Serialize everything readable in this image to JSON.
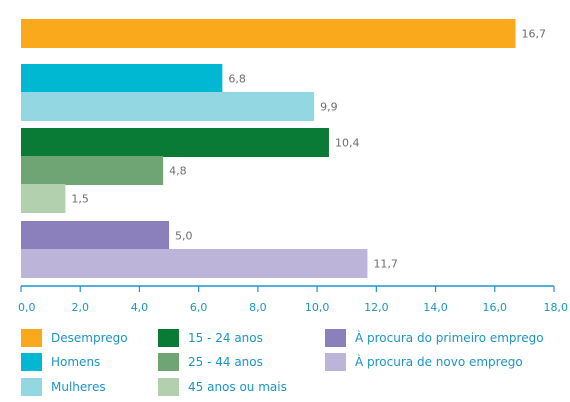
{
  "chart_data": {
    "type": "bar",
    "orientation": "horizontal",
    "xlim": [
      0,
      18
    ],
    "xticks": [
      "0,0",
      "2,0",
      "4,0",
      "6,0",
      "8,0",
      "10,0",
      "12,0",
      "14,0",
      "16,0",
      "18,0"
    ],
    "grid": false,
    "legend_position": "bottom",
    "bars": [
      {
        "name": "Desemprego",
        "value": 16.7,
        "label": "16,7",
        "color": "#f9a91b"
      },
      {
        "name": "Homens",
        "value": 6.8,
        "label": "6,8",
        "color": "#00b8d1"
      },
      {
        "name": "Mulheres",
        "value": 9.9,
        "label": "9,9",
        "color": "#93d7e3"
      },
      {
        "name": "15 - 24 anos",
        "value": 10.4,
        "label": "10,4",
        "color": "#0a7b37"
      },
      {
        "name": "25 - 44 anos",
        "value": 4.8,
        "label": "4,8",
        "color": "#6fa574"
      },
      {
        "name": "45 anos ou mais",
        "value": 1.5,
        "label": "1,5",
        "color": "#b2cfae"
      },
      {
        "name": "À procura do primeiro emprego",
        "value": 5.0,
        "label": "5,0",
        "color": "#8b80bb"
      },
      {
        "name": "À procura de novo emprego",
        "value": 11.7,
        "label": "11,7",
        "color": "#bdb5d9"
      }
    ],
    "legend": [
      {
        "label": "Desemprego",
        "color": "#f9a91b"
      },
      {
        "label": "15 - 24 anos",
        "color": "#0a7b37"
      },
      {
        "label": "À procura do primeiro emprego",
        "color": "#8b80bb"
      },
      {
        "label": "Homens",
        "color": "#00b8d1"
      },
      {
        "label": "25 - 44 anos",
        "color": "#6fa574"
      },
      {
        "label": "À procura de novo emprego",
        "color": "#bdb5d9"
      },
      {
        "label": "Mulheres",
        "color": "#93d7e3"
      },
      {
        "label": "45 anos ou mais",
        "color": "#b2cfae"
      }
    ],
    "axis_color": "#1b95c6"
  }
}
